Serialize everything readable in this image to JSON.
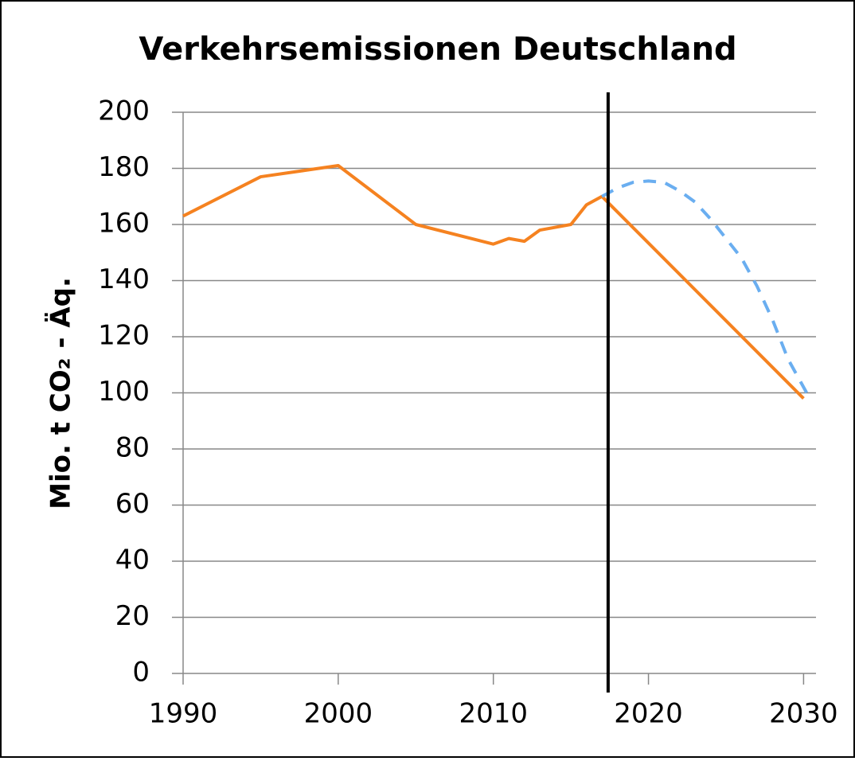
{
  "chart_data": {
    "type": "line",
    "title": "Verkehrsemissionen Deutschland",
    "y_label": "Mio. t CO₂ - Äq.",
    "xlim": [
      1990,
      2030.8
    ],
    "xticks": [
      1990,
      2000,
      2010,
      2020,
      2030
    ],
    "ylim": [
      0,
      200
    ],
    "yticks": [
      0,
      20,
      40,
      60,
      80,
      100,
      120,
      140,
      160,
      180,
      200
    ],
    "grid": true,
    "vline": 2017.4,
    "series": [
      {
        "color": "#f58220",
        "dash": false,
        "x": [
          1990,
          1995,
          2000,
          2005,
          2010,
          2011,
          2012,
          2013,
          2015,
          2016,
          2017,
          2030
        ],
        "values": [
          163,
          177,
          181,
          160,
          153,
          155,
          154,
          158,
          160,
          167,
          170,
          98
        ]
      },
      {
        "color": "#6aaef0",
        "dash": true,
        "x": [
          2017,
          2018,
          2019,
          2020,
          2021,
          2022,
          2023,
          2024,
          2025,
          2026,
          2027,
          2028,
          2029,
          2030.4
        ],
        "values": [
          170,
          173,
          175,
          175.5,
          175,
          172,
          168,
          162,
          155,
          148,
          138,
          126,
          112,
          98
        ]
      }
    ]
  }
}
